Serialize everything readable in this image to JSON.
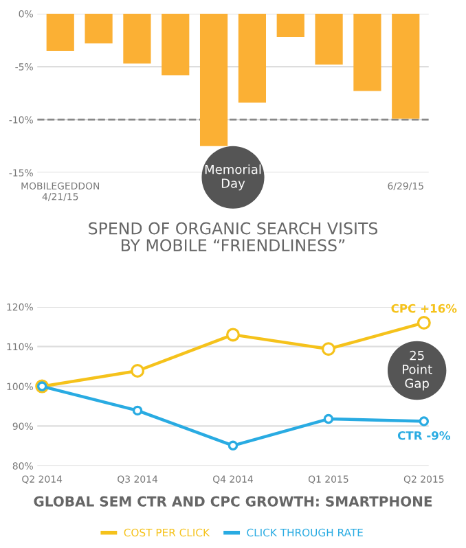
{
  "chart_data": [
    {
      "type": "bar",
      "title": "SPEND OF ORGANIC SEARCH VISITS\nBY MOBILE “FRIENDLINESS”",
      "categories": [
        "MOBILEGEDDON\n4/21/15",
        null,
        null,
        null,
        null,
        null,
        null,
        null,
        null,
        "6/29/15"
      ],
      "values": [
        -3.5,
        -2.8,
        -4.7,
        -5.8,
        -12.5,
        -8.4,
        -2.2,
        -4.8,
        -7.3,
        -9.9
      ],
      "color": "#fbb034",
      "ylim": [
        -15,
        0
      ],
      "yticks": [
        {
          "value": 0,
          "label": "0%"
        },
        {
          "value": -5,
          "label": "-5%"
        },
        {
          "value": -10,
          "label": "-10%"
        },
        {
          "value": -15,
          "label": "-15%"
        }
      ],
      "grid": "y",
      "ref_lines": [
        {
          "axis": "y",
          "value": -10,
          "color": "#888888",
          "line_style": "dashed"
        }
      ],
      "annotations": [
        "Memorial Day"
      ]
    },
    {
      "type": "line",
      "title": "GLOBAL SEM CTR AND CPC GROWTH: SMARTPHONE",
      "categories": [
        "Q2 2014",
        "Q3 2014",
        "Q4 2014",
        "Q1 2015",
        "Q2 2015"
      ],
      "series": [
        {
          "name": "COST PER CLICK",
          "color": "#f5c21b",
          "values": [
            100,
            103.9,
            113,
            109.4,
            116
          ]
        },
        {
          "name": "CLICK THROUGH RATE",
          "color": "#29abe2",
          "values": [
            100,
            93.9,
            85.1,
            91.8,
            91.2
          ]
        }
      ],
      "ylim": [
        80,
        120
      ],
      "yticks": [
        {
          "value": 80,
          "label": "80%"
        },
        {
          "value": 90,
          "label": "90%"
        },
        {
          "value": 100,
          "label": "100%"
        },
        {
          "value": 110,
          "label": "110%"
        },
        {
          "value": 120,
          "label": "120%"
        }
      ],
      "grid": "y",
      "marker": "circle",
      "legend": "bottom",
      "annotations": [
        {
          "text": "CPC +16%",
          "x": "Q2 2015",
          "y": 116
        },
        {
          "text": "CTR -9%",
          "x": "Q2 2015",
          "y": 91.2
        },
        "25 Point Gap"
      ]
    }
  ]
}
